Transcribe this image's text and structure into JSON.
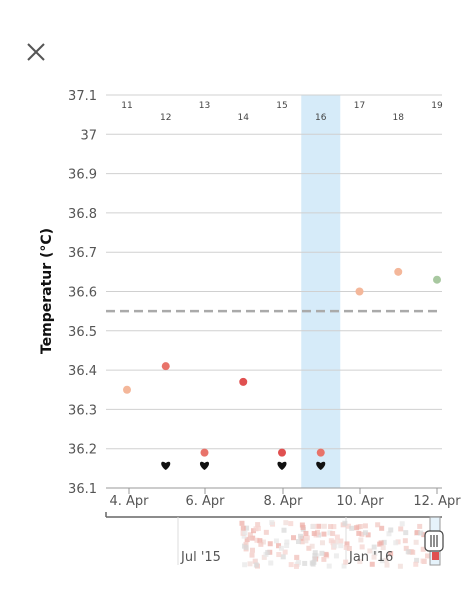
{
  "close_icon": "close-icon",
  "chart_data": {
    "type": "scatter",
    "ylabel": "Temperatur (°C)",
    "ylim": [
      36.1,
      37.1
    ],
    "y_ticks": [
      "36.1",
      "36.2",
      "36.3",
      "36.4",
      "36.5",
      "36.6",
      "36.7",
      "36.8",
      "36.9",
      "37",
      "37.1"
    ],
    "x_ticks": [
      "4. Apr",
      "6. Apr",
      "8. Apr",
      "10. Apr",
      "12. Apr"
    ],
    "cycle_days": [
      "11",
      "12",
      "13",
      "14",
      "15",
      "16",
      "17",
      "18",
      "19"
    ],
    "highlighted_cycle_day": "16",
    "coverline": 36.55,
    "points": [
      {
        "day": "11",
        "value": 36.35,
        "color": "#f4b79a"
      },
      {
        "day": "12",
        "value": 36.41,
        "color": "#e8736a"
      },
      {
        "day": "13",
        "value": 36.19,
        "color": "#e8736a"
      },
      {
        "day": "14",
        "value": 36.37,
        "color": "#e05050"
      },
      {
        "day": "15",
        "value": 36.19,
        "color": "#e05050"
      },
      {
        "day": "16",
        "value": 36.19,
        "color": "#e8736a"
      },
      {
        "day": "17",
        "value": 36.6,
        "color": "#f4b79a"
      },
      {
        "day": "18",
        "value": 36.65,
        "color": "#f4b79a"
      },
      {
        "day": "19",
        "value": 36.63,
        "color": "#a8c8a0"
      }
    ],
    "heart_days": [
      "12",
      "13",
      "15",
      "16"
    ]
  },
  "navigator": {
    "labels": [
      "Jul '15",
      "Jan '16"
    ],
    "handle_icon": "drag-handle-icon"
  }
}
